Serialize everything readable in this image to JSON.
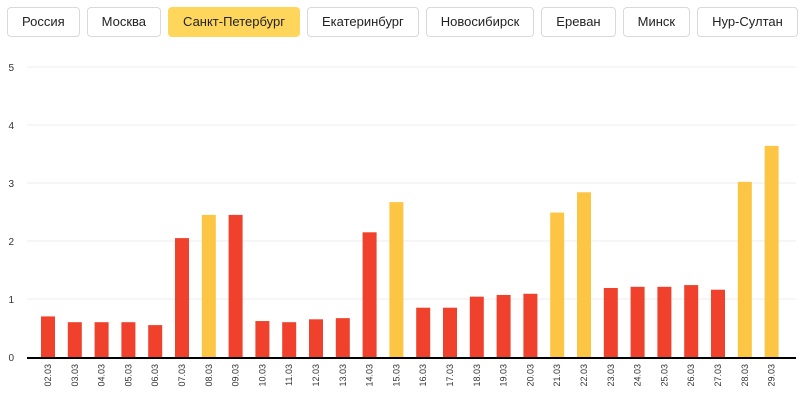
{
  "tabs": [
    {
      "label": "Россия",
      "active": false
    },
    {
      "label": "Москва",
      "active": false
    },
    {
      "label": "Санкт-Петербург",
      "active": true
    },
    {
      "label": "Екатеринбург",
      "active": false
    },
    {
      "label": "Новосибирск",
      "active": false
    },
    {
      "label": "Ереван",
      "active": false
    },
    {
      "label": "Минск",
      "active": false
    },
    {
      "label": "Нур-Султан",
      "active": false
    }
  ],
  "colors": {
    "weekday": "#f0412d",
    "weekend": "#fcc544",
    "active_tab": "#ffd65c"
  },
  "chart_data": {
    "type": "bar",
    "categories": [
      "02.03",
      "03.03",
      "04.03",
      "05.03",
      "06.03",
      "07.03",
      "08.03",
      "09.03",
      "10.03",
      "11.03",
      "12.03",
      "13.03",
      "14.03",
      "15.03",
      "16.03",
      "17.03",
      "18.03",
      "19.03",
      "20.03",
      "21.03",
      "22.03",
      "23.03",
      "24.03",
      "25.03",
      "26.03",
      "27.03",
      "28.03",
      "29.03"
    ],
    "values": [
      0.7,
      0.6,
      0.6,
      0.6,
      0.55,
      2.05,
      2.45,
      2.45,
      0.62,
      0.6,
      0.65,
      0.67,
      2.15,
      2.67,
      0.85,
      0.85,
      1.04,
      1.07,
      1.09,
      2.49,
      2.84,
      1.19,
      1.21,
      1.21,
      1.24,
      1.16,
      3.02,
      3.64
    ],
    "highlight": [
      false,
      false,
      false,
      false,
      false,
      false,
      true,
      false,
      false,
      false,
      false,
      false,
      false,
      true,
      false,
      false,
      false,
      false,
      false,
      true,
      true,
      false,
      false,
      false,
      false,
      false,
      true,
      true
    ],
    "ylim": [
      0,
      5
    ],
    "yticks": [
      0,
      1,
      2,
      3,
      4,
      5
    ],
    "grid": true,
    "title": "",
    "xlabel": "",
    "ylabel": ""
  }
}
